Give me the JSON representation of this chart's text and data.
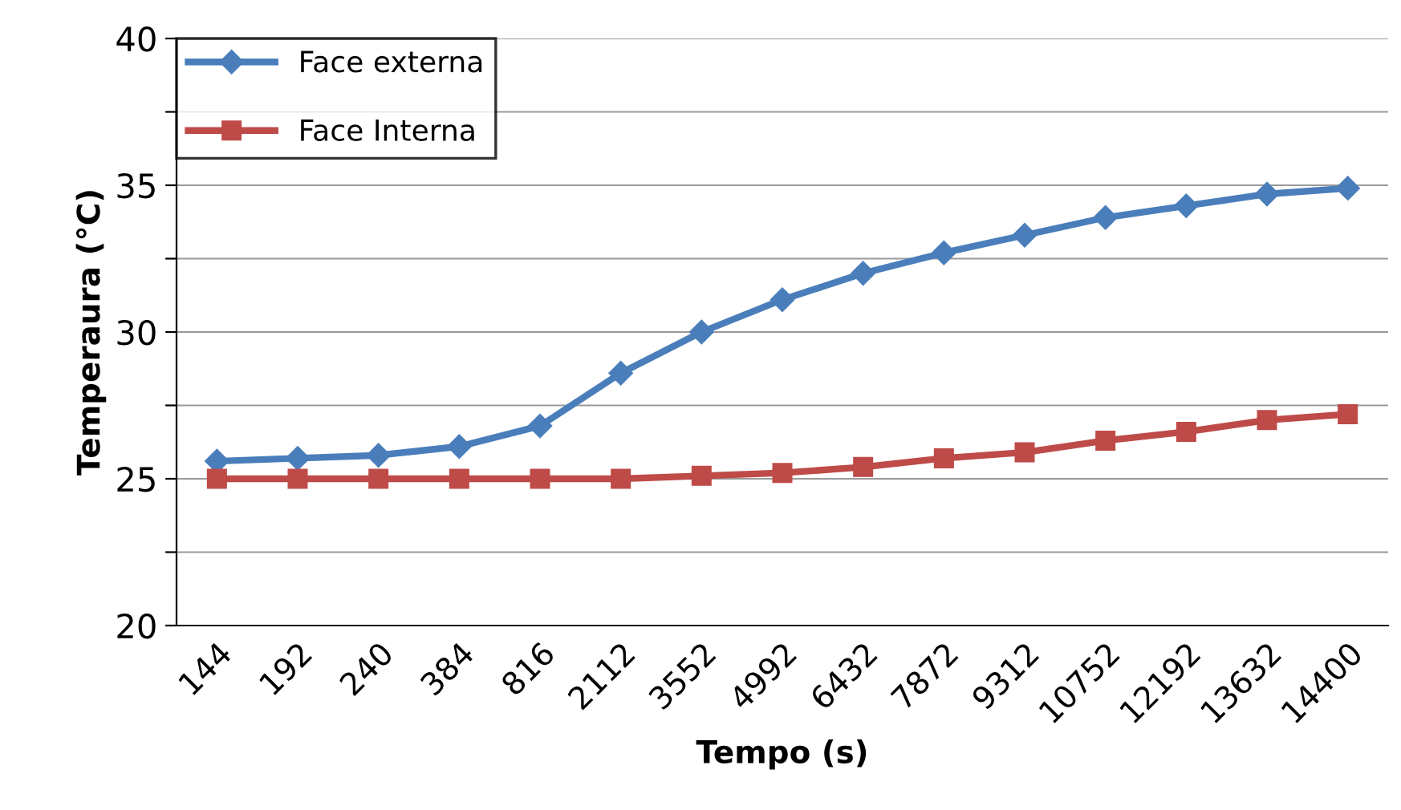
{
  "chart_data": {
    "type": "line",
    "xlabel": "Tempo (s)",
    "ylabel": "Temperaura (°C)",
    "categories": [
      "144",
      "192",
      "240",
      "384",
      "816",
      "2112",
      "3552",
      "4992",
      "6432",
      "7872",
      "9312",
      "10752",
      "12192",
      "13632",
      "14400"
    ],
    "series": [
      {
        "name": "Face externa",
        "color": "#4a7ebb",
        "marker": "diamond",
        "values": [
          25.6,
          25.7,
          25.8,
          26.1,
          26.8,
          28.6,
          30.0,
          31.1,
          32.0,
          32.7,
          33.3,
          33.9,
          34.3,
          34.7,
          34.9
        ]
      },
      {
        "name": "Face Interna",
        "color": "#be4b48",
        "marker": "square",
        "values": [
          25.0,
          25.0,
          25.0,
          25.0,
          25.0,
          25.0,
          25.1,
          25.2,
          25.4,
          25.7,
          25.9,
          26.3,
          26.6,
          27.0,
          27.2
        ]
      }
    ],
    "ylim": [
      20,
      40
    ],
    "yticks": [
      20,
      {
        "value": 22.5,
        "label": null
      },
      25,
      {
        "value": 27.5,
        "label": null
      },
      30,
      {
        "value": 32.5,
        "label": null
      },
      35,
      {
        "value": 37.5,
        "label": null
      },
      40
    ],
    "grid": "y",
    "legend": "top left"
  }
}
